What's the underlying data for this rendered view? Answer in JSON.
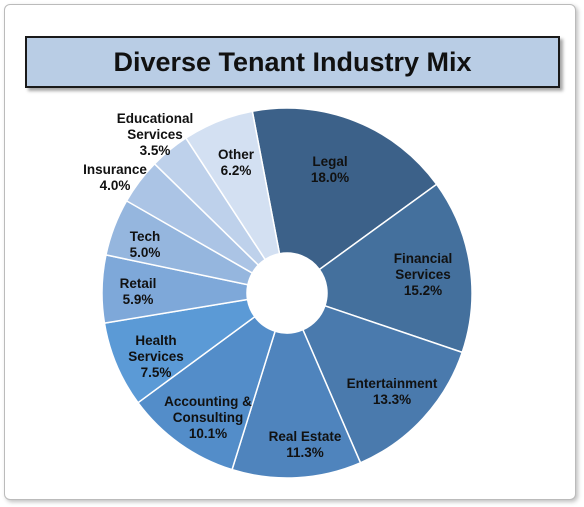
{
  "chart_data": {
    "type": "donut",
    "title": "Diverse Tenant Industry Mix",
    "categories": [
      "Legal",
      "Financial Services",
      "Entertainment",
      "Real Estate",
      "Accounting & Consulting",
      "Health Services",
      "Retail",
      "Tech",
      "Insurance",
      "Educational Services",
      "Other"
    ],
    "values": [
      18.0,
      15.2,
      13.3,
      11.3,
      10.1,
      7.5,
      5.9,
      5.0,
      4.0,
      3.5,
      6.2
    ],
    "value_labels": [
      "18.0%",
      "15.2%",
      "13.3%",
      "11.3%",
      "10.1%",
      "7.5%",
      "5.9%",
      "5.0%",
      "4.0%",
      "3.5%",
      "6.2%"
    ],
    "colors": [
      "#3c6189",
      "#44709d",
      "#4a7aad",
      "#4f84bd",
      "#538dc9",
      "#5b9ad6",
      "#7ea8d9",
      "#95b6de",
      "#abc4e5",
      "#bed1eb",
      "#d3e0f2"
    ]
  }
}
